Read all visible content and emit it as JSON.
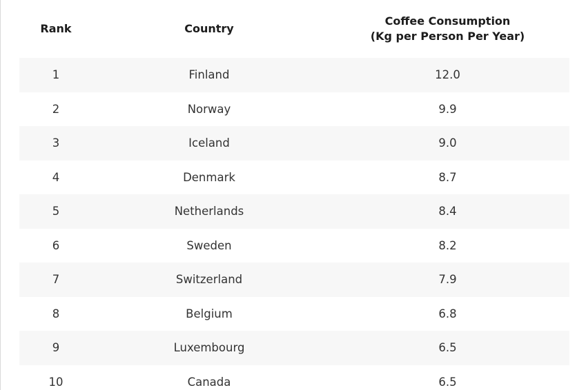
{
  "table": {
    "headers": {
      "rank": "Rank",
      "country": "Country",
      "consumption": "Coffee Consumption\n(Kg per Person Per Year)"
    },
    "rows": [
      {
        "rank": "1",
        "country": "Finland",
        "consumption": "12.0"
      },
      {
        "rank": "2",
        "country": "Norway",
        "consumption": "9.9"
      },
      {
        "rank": "3",
        "country": "Iceland",
        "consumption": "9.0"
      },
      {
        "rank": "4",
        "country": "Denmark",
        "consumption": "8.7"
      },
      {
        "rank": "5",
        "country": "Netherlands",
        "consumption": "8.4"
      },
      {
        "rank": "6",
        "country": "Sweden",
        "consumption": "8.2"
      },
      {
        "rank": "7",
        "country": "Switzerland",
        "consumption": "7.9"
      },
      {
        "rank": "8",
        "country": "Belgium",
        "consumption": "6.8"
      },
      {
        "rank": "9",
        "country": "Luxembourg",
        "consumption": "6.5"
      },
      {
        "rank": "10",
        "country": "Canada",
        "consumption": "6.5"
      }
    ]
  },
  "colors": {
    "row_shade": "#f7f7f7",
    "background": "#ffffff"
  }
}
